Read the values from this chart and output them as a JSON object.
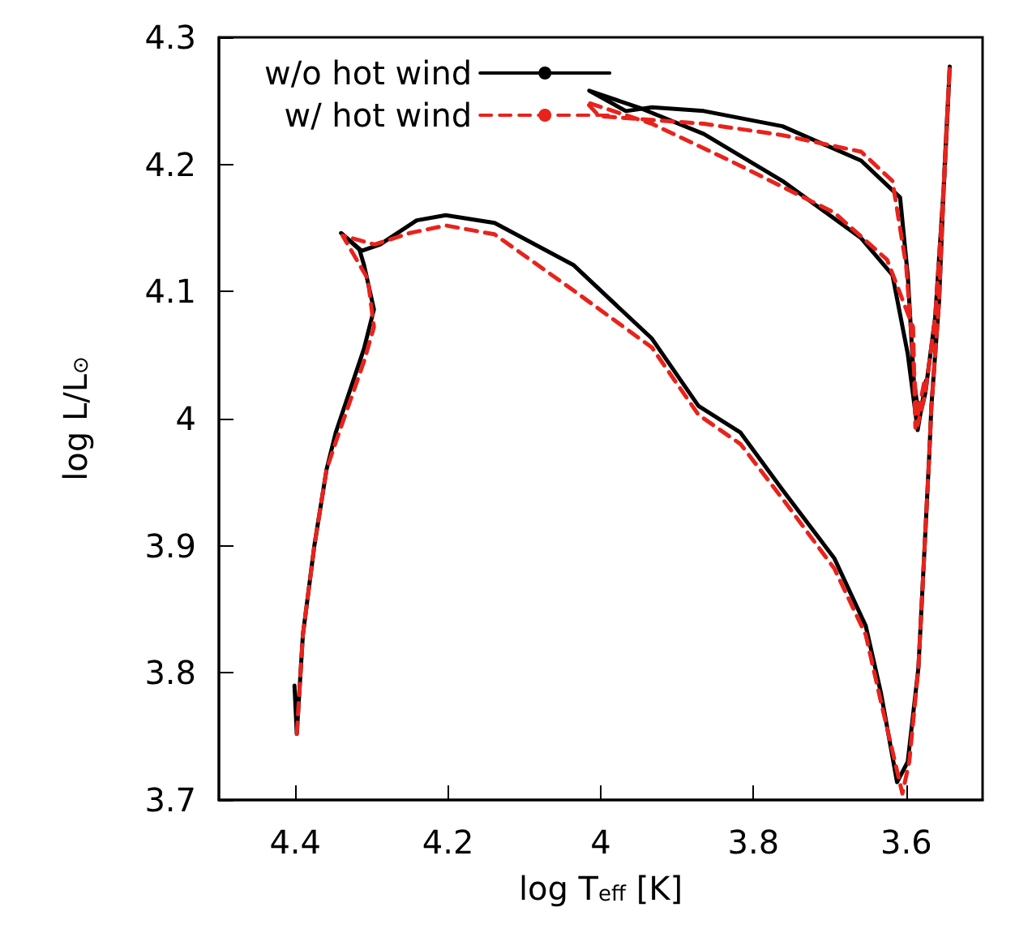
{
  "chart_data": {
    "type": "line",
    "xlabel": "log T$_{eff}$ [K]",
    "ylabel": "log L/L$_{⊙}$",
    "xlim": [
      4.5,
      3.5
    ],
    "ylim": [
      3.7,
      4.3
    ],
    "xticks": [
      4.4,
      4.2,
      4,
      3.8,
      3.6
    ],
    "yticks": [
      3.7,
      3.8,
      3.9,
      4,
      4.1,
      4.2,
      4.3
    ],
    "grid": false,
    "legend": "top left",
    "marker": "none",
    "series": [
      {
        "name": "w/o hot wind",
        "color": "#000000",
        "line_style": "solid",
        "x": [
          4.401,
          4.398,
          4.39,
          4.375,
          4.359,
          4.347,
          4.31,
          4.297,
          4.31,
          4.316,
          4.34,
          4.313,
          4.289,
          4.241,
          4.203,
          4.139,
          4.036,
          3.933,
          3.872,
          3.817,
          3.762,
          3.694,
          3.653,
          3.633,
          3.612,
          3.598,
          3.584,
          3.577,
          3.57,
          3.567,
          3.557,
          3.55,
          3.543,
          3.55,
          3.562,
          3.575,
          3.583,
          3.59,
          3.598,
          3.608,
          3.659,
          3.762,
          3.865,
          3.933,
          3.967,
          4.015,
          3.947,
          3.865,
          3.762,
          3.659,
          3.618,
          3.598,
          3.585,
          3.574
        ],
        "values": [
          3.79,
          3.752,
          3.83,
          3.9,
          3.96,
          3.989,
          4.055,
          4.086,
          4.121,
          4.133,
          4.146,
          4.132,
          4.137,
          4.156,
          4.16,
          4.154,
          4.121,
          4.063,
          4.01,
          3.989,
          3.944,
          3.89,
          3.837,
          3.784,
          3.714,
          3.73,
          3.804,
          3.886,
          3.969,
          4.01,
          4.092,
          4.195,
          4.277,
          4.19,
          4.08,
          4.02,
          4.0,
          4.03,
          4.113,
          4.174,
          4.203,
          4.23,
          4.242,
          4.245,
          4.242,
          4.258,
          4.244,
          4.224,
          4.187,
          4.142,
          4.113,
          4.051,
          3.991,
          4.03
        ]
      },
      {
        "name": "w/ hot wind",
        "color": "#e8231c",
        "line_style": "dashed",
        "x": [
          4.398,
          4.39,
          4.375,
          4.359,
          4.345,
          4.31,
          4.297,
          4.305,
          4.338,
          4.296,
          4.25,
          4.203,
          4.139,
          4.036,
          3.933,
          3.872,
          3.817,
          3.762,
          3.694,
          3.653,
          3.633,
          3.605,
          3.596,
          3.584,
          3.577,
          3.57,
          3.567,
          3.557,
          3.55,
          3.543,
          3.55,
          3.562,
          3.575,
          3.585,
          3.59,
          3.6,
          3.618,
          3.659,
          3.762,
          3.865,
          4.002,
          4.019,
          3.933,
          3.831,
          3.694,
          3.625,
          3.591,
          3.588,
          3.576
        ],
        "values": [
          3.752,
          3.83,
          3.9,
          3.96,
          3.985,
          4.045,
          4.072,
          4.11,
          4.144,
          4.137,
          4.146,
          4.152,
          4.145,
          4.101,
          4.056,
          4.003,
          3.98,
          3.937,
          3.882,
          3.83,
          3.777,
          3.705,
          3.73,
          3.804,
          3.886,
          3.969,
          4.01,
          4.092,
          4.195,
          4.277,
          4.19,
          4.08,
          4.02,
          3.995,
          4.04,
          4.12,
          4.187,
          4.21,
          4.223,
          4.232,
          4.238,
          4.249,
          4.232,
          4.203,
          4.162,
          4.125,
          4.072,
          3.993,
          4.03
        ]
      }
    ]
  }
}
